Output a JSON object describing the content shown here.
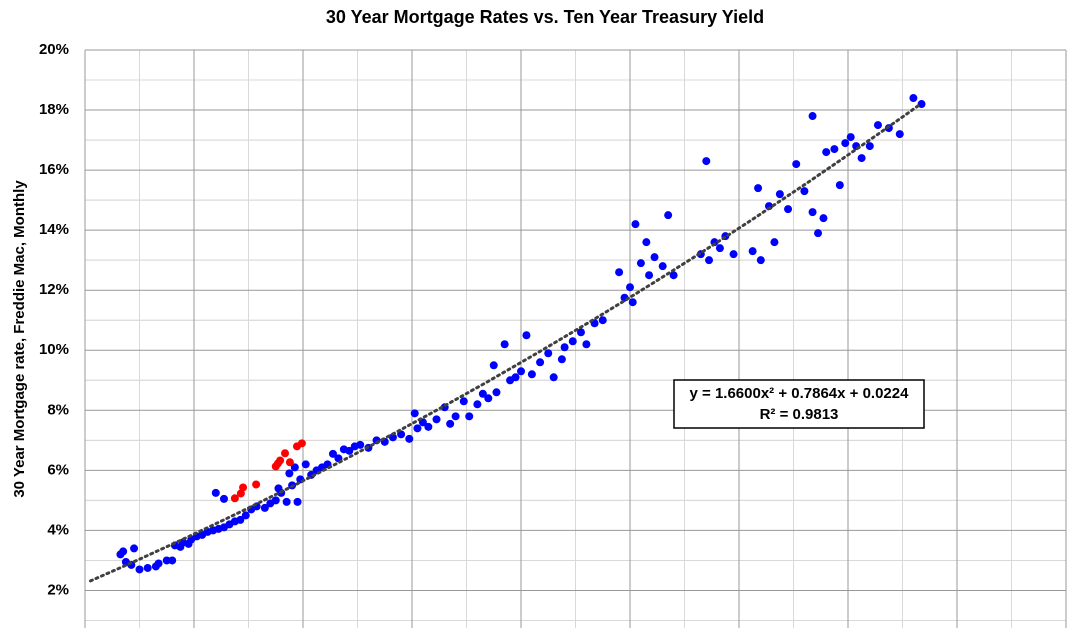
{
  "chart_data": {
    "type": "scatter",
    "title": "30 Year Mortgage Rates vs. Ten Year Treasury Yield",
    "ylabel": "30 Year Mortgage rate, Freddie Mac, Monthly",
    "xlim": [
      0,
      18
    ],
    "xticks": [
      0,
      2,
      4,
      6,
      8,
      10,
      12,
      14,
      16,
      18
    ],
    "ylim": [
      0.75,
      20
    ],
    "yticks": [
      {
        "value": 2,
        "label": "2%"
      },
      {
        "value": 4,
        "label": "4%"
      },
      {
        "value": 6,
        "label": "6%"
      },
      {
        "value": 8,
        "label": "8%"
      },
      {
        "value": 10,
        "label": "10%"
      },
      {
        "value": 12,
        "label": "12%"
      },
      {
        "value": 14,
        "label": "14%"
      },
      {
        "value": 16,
        "label": "16%"
      },
      {
        "value": 18,
        "label": "18%"
      },
      {
        "value": 20,
        "label": "20%"
      }
    ],
    "grid": true,
    "series": [
      {
        "color": "#0000ff",
        "x": [
          0.65,
          0.7,
          0.75,
          0.85,
          0.9,
          1.0,
          1.15,
          1.3,
          1.35,
          1.5,
          1.6,
          1.65,
          1.75,
          1.8,
          1.9,
          1.95,
          2.05,
          2.15,
          2.25,
          2.35,
          2.45,
          2.55,
          2.65,
          2.75,
          2.85,
          2.95,
          2.4,
          2.55,
          3.05,
          3.15,
          3.3,
          3.4,
          3.5,
          3.6,
          3.7,
          3.8,
          3.9,
          3.55,
          3.75,
          3.85,
          3.95,
          4.05,
          4.15,
          4.25,
          4.35,
          4.45,
          4.55,
          4.65,
          4.75,
          4.85,
          4.95,
          5.05,
          5.2,
          5.35,
          5.5,
          5.65,
          5.8,
          5.95,
          6.05,
          6.1,
          6.2,
          6.3,
          6.45,
          6.6,
          6.7,
          6.8,
          6.95,
          7.05,
          7.2,
          7.3,
          7.4,
          7.5,
          7.55,
          7.7,
          7.8,
          7.9,
          8.0,
          8.1,
          8.2,
          8.35,
          8.5,
          8.6,
          8.75,
          8.8,
          8.95,
          9.1,
          9.2,
          9.35,
          9.5,
          9.8,
          9.9,
          10.0,
          10.05,
          10.1,
          10.2,
          10.3,
          10.35,
          10.45,
          10.6,
          10.7,
          10.8,
          11.3,
          11.4,
          11.45,
          11.55,
          11.65,
          11.75,
          11.9,
          12.25,
          12.35,
          12.4,
          12.55,
          12.65,
          12.75,
          12.9,
          13.05,
          13.2,
          13.35,
          13.45,
          13.55,
          13.6,
          13.35,
          13.75,
          13.85,
          13.95,
          14.05,
          14.15,
          14.25,
          14.4,
          14.55,
          14.75,
          14.95,
          15.2,
          15.35
        ],
        "y": [
          3.2,
          3.3,
          2.95,
          2.85,
          3.4,
          2.7,
          2.75,
          2.8,
          2.9,
          3.0,
          3.0,
          3.5,
          3.45,
          3.6,
          3.55,
          3.7,
          3.8,
          3.85,
          3.95,
          4.0,
          4.05,
          4.1,
          4.2,
          4.3,
          4.35,
          4.5,
          5.25,
          5.05,
          4.7,
          4.8,
          4.75,
          4.9,
          5.0,
          5.25,
          4.95,
          5.5,
          4.95,
          5.4,
          5.9,
          6.1,
          5.7,
          6.2,
          5.85,
          6.0,
          6.1,
          6.2,
          6.55,
          6.4,
          6.7,
          6.65,
          6.8,
          6.85,
          6.75,
          7.0,
          6.95,
          7.1,
          7.2,
          7.05,
          7.9,
          7.4,
          7.6,
          7.45,
          7.7,
          8.1,
          7.55,
          7.8,
          8.3,
          7.8,
          8.2,
          8.55,
          8.4,
          9.5,
          8.6,
          10.2,
          9.0,
          9.1,
          9.3,
          10.5,
          9.2,
          9.6,
          9.9,
          9.1,
          9.7,
          10.1,
          10.3,
          10.6,
          10.2,
          10.9,
          11.0,
          12.6,
          11.75,
          12.1,
          11.6,
          14.2,
          12.9,
          13.6,
          12.5,
          13.1,
          12.8,
          14.5,
          12.5,
          13.2,
          16.3,
          13.0,
          13.6,
          13.4,
          13.8,
          13.2,
          13.3,
          15.4,
          13.0,
          14.8,
          13.6,
          15.2,
          14.7,
          16.2,
          15.3,
          14.6,
          13.9,
          14.4,
          16.6,
          17.8,
          16.7,
          15.5,
          16.9,
          17.1,
          16.8,
          16.4,
          16.8,
          17.5,
          17.4,
          17.2,
          18.4,
          18.2
        ]
      },
      {
        "color": "#ff0000",
        "x": [
          2.75,
          2.9,
          2.86,
          3.14,
          3.5,
          3.58,
          3.67,
          3.76,
          3.89,
          3.98,
          3.54
        ],
        "y": [
          5.07,
          5.43,
          5.23,
          5.53,
          6.13,
          6.33,
          6.57,
          6.27,
          6.8,
          6.9,
          6.23
        ]
      }
    ],
    "trendline": {
      "coefficients": [
        1.66,
        0.7864,
        0.0224
      ],
      "xrange": [
        0.1,
        15.3
      ],
      "color": "#404040"
    },
    "annotations": [
      "y = 1.6600x² + 0.7864x + 0.0224",
      "R² = 0.9813"
    ]
  }
}
